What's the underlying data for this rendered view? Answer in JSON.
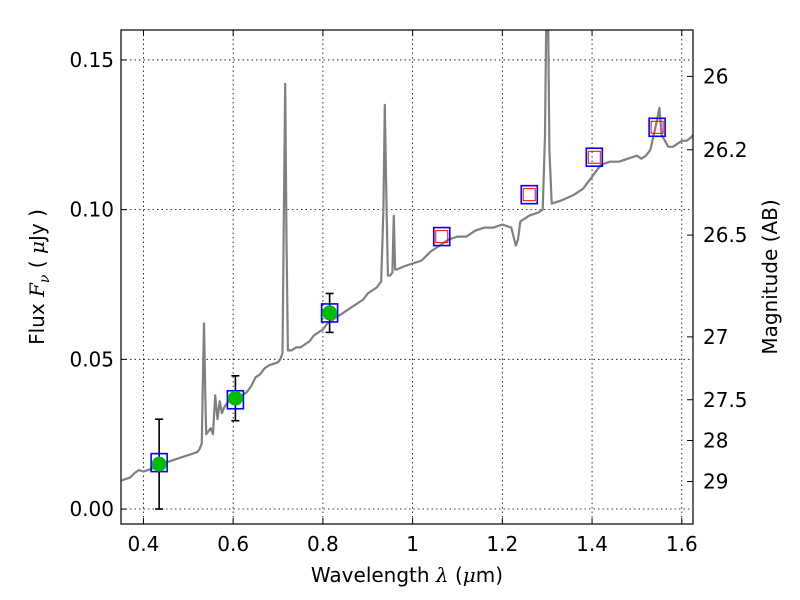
{
  "chart_data": {
    "type": "line",
    "xlabel": {
      "pre": "Wavelength  ",
      "sym": "λ",
      "post": " (",
      "mu": "μ",
      "unit": "m)"
    },
    "ylabel": {
      "pre": "Flux  ",
      "sym": "F",
      "sub": "ν",
      "mid": "  ( ",
      "mu": "μ",
      "post": "Jy )"
    },
    "y2label": "Magnitude (AB)",
    "xlim": [
      0.35,
      1.625
    ],
    "ylim": [
      -0.005,
      0.16
    ],
    "grid": true,
    "xticks": [
      {
        "value": 0.4,
        "label": "0.4"
      },
      {
        "value": 0.6,
        "label": "0.6"
      },
      {
        "value": 0.8,
        "label": "0.8"
      },
      {
        "value": 1.0,
        "label": "1"
      },
      {
        "value": 1.2,
        "label": "1.2"
      },
      {
        "value": 1.4,
        "label": "1.4"
      },
      {
        "value": 1.6,
        "label": "1.6"
      }
    ],
    "yticks": [
      {
        "value": 0.0,
        "label": "0.00"
      },
      {
        "value": 0.05,
        "label": "0.05"
      },
      {
        "value": 0.1,
        "label": "0.10"
      },
      {
        "value": 0.15,
        "label": "0.15"
      }
    ],
    "y2ticks": [
      {
        "flux": 0.1445,
        "label": "26"
      },
      {
        "flux": 0.12,
        "label": "26.2"
      },
      {
        "flux": 0.0915,
        "label": "26.5"
      },
      {
        "flux": 0.0575,
        "label": "27"
      },
      {
        "flux": 0.0365,
        "label": "27.5"
      },
      {
        "flux": 0.0229,
        "label": "28"
      },
      {
        "flux": 0.0092,
        "label": "29"
      }
    ],
    "series": [
      {
        "kind": "model-spectrum",
        "color": "#808080",
        "points": [
          [
            0.35,
            0.0095
          ],
          [
            0.36,
            0.01
          ],
          [
            0.37,
            0.0105
          ],
          [
            0.38,
            0.012
          ],
          [
            0.39,
            0.013
          ],
          [
            0.4,
            0.0125
          ],
          [
            0.41,
            0.013
          ],
          [
            0.42,
            0.0135
          ],
          [
            0.43,
            0.014
          ],
          [
            0.44,
            0.015
          ],
          [
            0.45,
            0.0155
          ],
          [
            0.46,
            0.016
          ],
          [
            0.47,
            0.0165
          ],
          [
            0.48,
            0.017
          ],
          [
            0.49,
            0.0175
          ],
          [
            0.5,
            0.018
          ],
          [
            0.51,
            0.0185
          ],
          [
            0.52,
            0.019
          ],
          [
            0.525,
            0.02
          ],
          [
            0.53,
            0.022
          ],
          [
            0.532,
            0.04
          ],
          [
            0.535,
            0.062
          ],
          [
            0.538,
            0.038
          ],
          [
            0.54,
            0.025
          ],
          [
            0.545,
            0.026
          ],
          [
            0.55,
            0.027
          ],
          [
            0.555,
            0.025
          ],
          [
            0.56,
            0.038
          ],
          [
            0.565,
            0.03
          ],
          [
            0.57,
            0.036
          ],
          [
            0.575,
            0.032
          ],
          [
            0.58,
            0.034
          ],
          [
            0.59,
            0.036
          ],
          [
            0.6,
            0.037
          ],
          [
            0.61,
            0.037
          ],
          [
            0.62,
            0.038
          ],
          [
            0.63,
            0.039
          ],
          [
            0.64,
            0.041
          ],
          [
            0.65,
            0.044
          ],
          [
            0.66,
            0.045
          ],
          [
            0.67,
            0.047
          ],
          [
            0.68,
            0.048
          ],
          [
            0.69,
            0.0485
          ],
          [
            0.7,
            0.049
          ],
          [
            0.705,
            0.05
          ],
          [
            0.71,
            0.052
          ],
          [
            0.713,
            0.1
          ],
          [
            0.716,
            0.142
          ],
          [
            0.719,
            0.09
          ],
          [
            0.722,
            0.053
          ],
          [
            0.73,
            0.053
          ],
          [
            0.74,
            0.054
          ],
          [
            0.75,
            0.054
          ],
          [
            0.76,
            0.055
          ],
          [
            0.77,
            0.056
          ],
          [
            0.78,
            0.058
          ],
          [
            0.79,
            0.059
          ],
          [
            0.8,
            0.06
          ],
          [
            0.81,
            0.062
          ],
          [
            0.82,
            0.063
          ],
          [
            0.83,
            0.064
          ],
          [
            0.84,
            0.065
          ],
          [
            0.85,
            0.066
          ],
          [
            0.86,
            0.067
          ],
          [
            0.87,
            0.068
          ],
          [
            0.88,
            0.069
          ],
          [
            0.89,
            0.07
          ],
          [
            0.9,
            0.072
          ],
          [
            0.91,
            0.073
          ],
          [
            0.92,
            0.074
          ],
          [
            0.93,
            0.076
          ],
          [
            0.935,
            0.1
          ],
          [
            0.938,
            0.135
          ],
          [
            0.942,
            0.1
          ],
          [
            0.945,
            0.078
          ],
          [
            0.95,
            0.078
          ],
          [
            0.955,
            0.079
          ],
          [
            0.958,
            0.098
          ],
          [
            0.961,
            0.08
          ],
          [
            0.965,
            0.08
          ],
          [
            0.98,
            0.081
          ],
          [
            1.0,
            0.082
          ],
          [
            1.02,
            0.083
          ],
          [
            1.04,
            0.086
          ],
          [
            1.06,
            0.088
          ],
          [
            1.08,
            0.09
          ],
          [
            1.1,
            0.091
          ],
          [
            1.12,
            0.091
          ],
          [
            1.14,
            0.093
          ],
          [
            1.16,
            0.094
          ],
          [
            1.18,
            0.094
          ],
          [
            1.2,
            0.095
          ],
          [
            1.22,
            0.094
          ],
          [
            1.23,
            0.088
          ],
          [
            1.235,
            0.09
          ],
          [
            1.24,
            0.096
          ],
          [
            1.26,
            0.098
          ],
          [
            1.28,
            0.099
          ],
          [
            1.29,
            0.1
          ],
          [
            1.295,
            0.125
          ],
          [
            1.298,
            0.165
          ],
          [
            1.302,
            0.165
          ],
          [
            1.305,
            0.12
          ],
          [
            1.31,
            0.102
          ],
          [
            1.33,
            0.103
          ],
          [
            1.36,
            0.105
          ],
          [
            1.38,
            0.107
          ],
          [
            1.4,
            0.111
          ],
          [
            1.42,
            0.115
          ],
          [
            1.44,
            0.116
          ],
          [
            1.46,
            0.116
          ],
          [
            1.48,
            0.117
          ],
          [
            1.5,
            0.118
          ],
          [
            1.51,
            0.117
          ],
          [
            1.52,
            0.118
          ],
          [
            1.53,
            0.12
          ],
          [
            1.545,
            0.13
          ],
          [
            1.55,
            0.134
          ],
          [
            1.555,
            0.125
          ],
          [
            1.57,
            0.121
          ],
          [
            1.58,
            0.121
          ],
          [
            1.59,
            0.122
          ],
          [
            1.6,
            0.123
          ],
          [
            1.61,
            0.123
          ],
          [
            1.62,
            0.124
          ],
          [
            1.625,
            0.125
          ]
        ]
      },
      {
        "kind": "model-photometry",
        "marker": "square",
        "edgeColor": "#0000ff",
        "points": [
          [
            0.435,
            0.0155
          ],
          [
            0.605,
            0.0365
          ],
          [
            0.815,
            0.0655
          ],
          [
            1.065,
            0.091
          ],
          [
            1.26,
            0.105
          ],
          [
            1.405,
            0.1175
          ],
          [
            1.545,
            0.1275
          ]
        ]
      },
      {
        "kind": "observed-detections",
        "marker": "circle",
        "color": "#00bb00",
        "points": [
          {
            "x": 0.435,
            "y": 0.015,
            "err": 0.015
          },
          {
            "x": 0.605,
            "y": 0.037,
            "err": 0.0075
          },
          {
            "x": 0.815,
            "y": 0.0655,
            "err": 0.0065
          }
        ]
      },
      {
        "kind": "observed-upper-limits",
        "marker": "square",
        "edgeColor": "#ff0000",
        "points": [
          [
            1.065,
            0.091
          ],
          [
            1.26,
            0.105
          ],
          [
            1.405,
            0.1175
          ],
          [
            1.545,
            0.1275
          ]
        ]
      }
    ]
  }
}
